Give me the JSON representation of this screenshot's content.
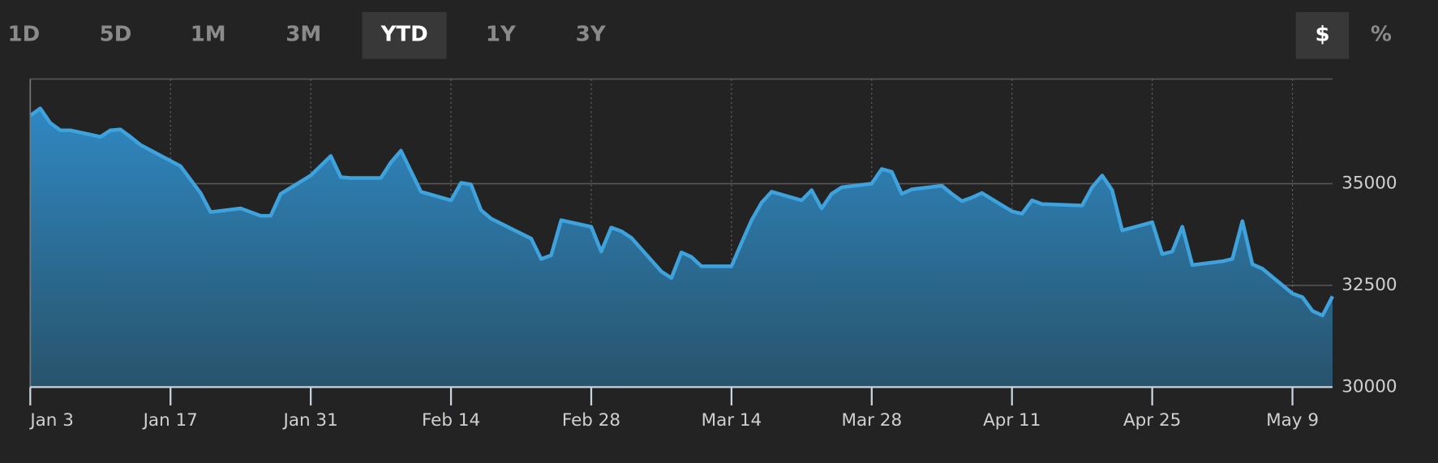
{
  "range_buttons": {
    "items": [
      "1D",
      "5D",
      "1M",
      "3M",
      "YTD",
      "1Y",
      "3Y"
    ],
    "selected": 4
  },
  "unit_buttons": {
    "items": [
      "$",
      "%"
    ],
    "selected": 0
  },
  "chart_data": {
    "type": "area",
    "x": [
      "Jan 3",
      "Jan 4",
      "Jan 5",
      "Jan 6",
      "Jan 7",
      "Jan 10",
      "Jan 11",
      "Jan 12",
      "Jan 13",
      "Jan 14",
      "Jan 18",
      "Jan 20",
      "Jan 21",
      "Jan 24",
      "Jan 25",
      "Jan 26",
      "Jan 27",
      "Jan 28",
      "Jan 31",
      "Feb 2",
      "Feb 3",
      "Feb 4",
      "Feb 7",
      "Feb 8",
      "Feb 9",
      "Feb 11",
      "Feb 14",
      "Feb 15",
      "Feb 16",
      "Feb 17",
      "Feb 18",
      "Feb 22",
      "Feb 23",
      "Feb 24",
      "Feb 25",
      "Feb 28",
      "Mar 1",
      "Mar 2",
      "Mar 3",
      "Mar 4",
      "Mar 7",
      "Mar 8",
      "Mar 9",
      "Mar 10",
      "Mar 11",
      "Mar 14",
      "Mar 15",
      "Mar 16",
      "Mar 17",
      "Mar 18",
      "Mar 21",
      "Mar 22",
      "Mar 23",
      "Mar 24",
      "Mar 25",
      "Mar 28",
      "Mar 29",
      "Mar 30",
      "Mar 31",
      "Apr 1",
      "Apr 4",
      "Apr 5",
      "Apr 6",
      "Apr 7",
      "Apr 8",
      "Apr 11",
      "Apr 12",
      "Apr 13",
      "Apr 14",
      "Apr 18",
      "Apr 19",
      "Apr 20",
      "Apr 21",
      "Apr 22",
      "Apr 25",
      "Apr 26",
      "Apr 27",
      "Apr 28",
      "Apr 29",
      "May 2",
      "May 3",
      "May 4",
      "May 5",
      "May 6",
      "May 9",
      "May 10",
      "May 11",
      "May 12",
      "May 13"
    ],
    "values": [
      36670,
      36850,
      36490,
      36310,
      36310,
      36150,
      36310,
      36330,
      36150,
      35950,
      35430,
      34770,
      34300,
      34390,
      34300,
      34210,
      34210,
      34750,
      35200,
      35680,
      35160,
      35140,
      35140,
      35520,
      35810,
      34800,
      34590,
      35020,
      34980,
      34350,
      34140,
      33650,
      33150,
      33240,
      34100,
      33940,
      33330,
      33920,
      33830,
      33670,
      32840,
      32680,
      33310,
      33200,
      32970,
      32970,
      33540,
      34100,
      34530,
      34800,
      34590,
      34840,
      34390,
      34750,
      34910,
      35000,
      35360,
      35290,
      34750,
      34860,
      34950,
      34750,
      34570,
      34660,
      34770,
      34320,
      34260,
      34590,
      34500,
      34460,
      34910,
      35200,
      34840,
      33850,
      34050,
      33270,
      33330,
      33940,
      33000,
      33090,
      33150,
      34080,
      33020,
      32910,
      32300,
      32210,
      31870,
      31760,
      32230
    ],
    "color": "#3ea2dc",
    "xlim": [
      "Jan 3",
      "May 13"
    ],
    "xticks": [
      "Jan 3",
      "Jan 17",
      "Jan 31",
      "Feb 14",
      "Feb 28",
      "Mar 14",
      "Mar 28",
      "Apr 11",
      "Apr 25",
      "May 9"
    ],
    "ylim": [
      30000,
      37570
    ],
    "yticks": [
      30000,
      32500,
      35000
    ],
    "grid": true
  }
}
